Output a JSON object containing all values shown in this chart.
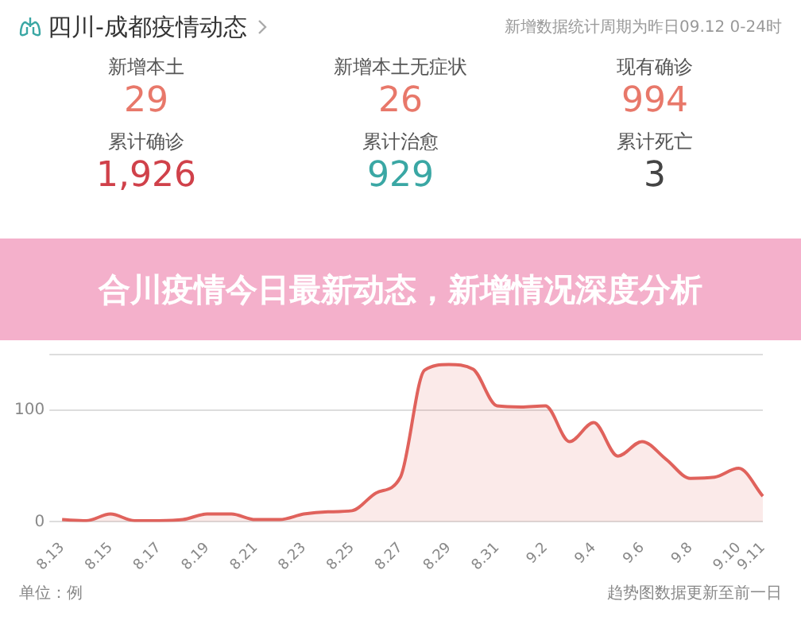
{
  "chart_data": [
    {
      "type": "other",
      "title": "四川-成都疫情动态",
      "subtitle": "新增数据统计周期为昨日09.12 0-24时",
      "categories": [
        "新增本土",
        "新增本土无症状",
        "现有确诊",
        "累计确诊",
        "累计治愈",
        "累计死亡"
      ],
      "value_labels": [
        "29",
        "26",
        "994",
        "1,926",
        "929",
        "3"
      ],
      "colors": [
        "#e8786a",
        "#e8786a",
        "#e8786a",
        "#d0414a",
        "#3aa7a4",
        "#444444"
      ]
    },
    {
      "type": "area",
      "title": "合川疫情今日最新动态，新增情况深度分析",
      "categories": [
        "8.13",
        null,
        "8.15",
        null,
        "8.17",
        null,
        "8.19",
        null,
        "8.21",
        null,
        "8.23",
        null,
        "8.25",
        null,
        "8.27",
        null,
        "8.29",
        null,
        "8.31",
        null,
        "9.2",
        null,
        "9.4",
        null,
        "9.6",
        null,
        "9.8",
        null,
        "9.10",
        "9.11"
      ],
      "series": [
        {
          "color": "#e0625c",
          "values": [
            2,
            1,
            7,
            1,
            1,
            2,
            7,
            7,
            2,
            2,
            7,
            9,
            10,
            26,
            40,
            136,
            141,
            137,
            104,
            103,
            104,
            72,
            89,
            59,
            72,
            56,
            39,
            40,
            48,
            23
          ]
        }
      ],
      "ylim": [
        0,
        150
      ],
      "yticks": [
        0,
        100,
        {
          "value": 150,
          "label": null
        }
      ],
      "grid": "y",
      "legend": false,
      "annotations": [
        "单位：例",
        "趋势图数据更新至前一日"
      ]
    }
  ]
}
